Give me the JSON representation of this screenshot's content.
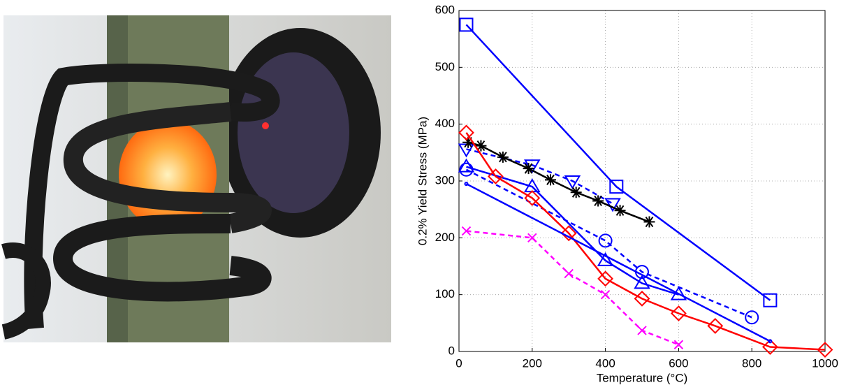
{
  "chart_data": {
    "type": "line",
    "xlabel": "Temperature (°C)",
    "ylabel": "0.2% Yield Stress (MPa)",
    "xlim": [
      0,
      1000
    ],
    "ylim": [
      0,
      600
    ],
    "xticks": [
      0,
      200,
      400,
      600,
      800,
      1000
    ],
    "yticks": [
      0,
      100,
      200,
      300,
      400,
      500,
      600
    ],
    "grid": true,
    "series": [
      {
        "color": "#0000ff",
        "marker": "square",
        "dashed": false,
        "x": [
          20,
          430,
          850
        ],
        "values": [
          575,
          290,
          90
        ]
      },
      {
        "color": "#0000ff",
        "marker": "circle",
        "dashed": true,
        "x": [
          20,
          400,
          500,
          800
        ],
        "values": [
          320,
          195,
          140,
          60
        ]
      },
      {
        "color": "#0000ff",
        "marker": "triangle-up",
        "dashed": false,
        "x": [
          20,
          200,
          400,
          500,
          600
        ],
        "values": [
          325,
          290,
          160,
          120,
          100
        ]
      },
      {
        "color": "#0000ff",
        "marker": "triangle-down",
        "dashed": true,
        "x": [
          20,
          200,
          310,
          420
        ],
        "values": [
          356,
          328,
          300,
          260
        ]
      },
      {
        "color": "#000000",
        "marker": "asterisk",
        "dashed": false,
        "x": [
          25,
          60,
          120,
          190,
          250,
          320,
          380,
          440,
          520
        ],
        "values": [
          368,
          362,
          342,
          322,
          302,
          280,
          265,
          248,
          228
        ]
      },
      {
        "color": "#ff0000",
        "marker": "diamond",
        "dashed": false,
        "x": [
          20,
          100,
          200,
          300,
          400,
          500,
          600,
          700,
          850,
          1000
        ],
        "values": [
          385,
          308,
          270,
          208,
          128,
          93,
          67,
          45,
          8,
          3
        ]
      },
      {
        "color": "#ff00ff",
        "marker": "x",
        "dashed": true,
        "x": [
          20,
          200,
          300,
          400,
          500,
          600
        ],
        "values": [
          212,
          200,
          137,
          100,
          37,
          12
        ]
      },
      {
        "color": "#0000ff",
        "marker": "dot",
        "dashed": false,
        "x": [
          20,
          850
        ],
        "values": [
          295,
          18
        ]
      }
    ]
  }
}
